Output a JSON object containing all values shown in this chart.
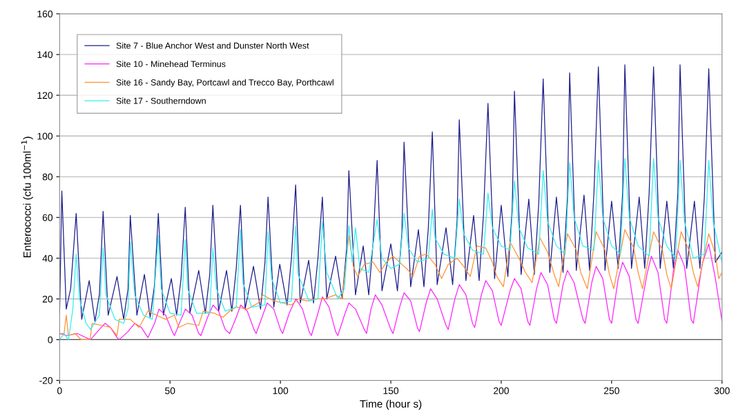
{
  "chart_data": {
    "type": "line",
    "xlabel": "Time (hour s)",
    "ylabel": "Enterococci (cfu 100ml$^{−1}$)",
    "xlim": [
      0,
      300
    ],
    "xticks": [
      0,
      50,
      100,
      150,
      200,
      250,
      300
    ],
    "ylim": [
      -20,
      160
    ],
    "yticks": [
      -20,
      0,
      20,
      40,
      60,
      80,
      100,
      120,
      140,
      160
    ],
    "grid": "y",
    "legend": "top left",
    "line_style": "solid",
    "series": [
      {
        "name": "Site 7 - Blue Anchor West and Dunster North West",
        "color": "#1c1c8c",
        "x": [
          0,
          1,
          3,
          5,
          7.5,
          10,
          13.4,
          16,
          18,
          19.7,
          22,
          26,
          29,
          31,
          32,
          35,
          38.4,
          41,
          43,
          44.7,
          47,
          50.6,
          53,
          55,
          56.9,
          59,
          63,
          66,
          68,
          69.4,
          72,
          75.6,
          78,
          80,
          81.9,
          84,
          87.8,
          91,
          93,
          94.4,
          97,
          99.7,
          103,
          105,
          106.9,
          109,
          112.8,
          115,
          117,
          119,
          121,
          125,
          128,
          130,
          131,
          134,
          137.5,
          140,
          142,
          143.8,
          146,
          150,
          153,
          155,
          156,
          159,
          162.5,
          165,
          167,
          168.8,
          171,
          175,
          178,
          180,
          181,
          184,
          187.5,
          190,
          192,
          194,
          197,
          200,
          203,
          205,
          206,
          209,
          212.5,
          215,
          217,
          219,
          222,
          225,
          228,
          230,
          231,
          234,
          237.5,
          240,
          242,
          244,
          247,
          250,
          253,
          255,
          256,
          259,
          262.5,
          265,
          267,
          269,
          272,
          275,
          278,
          280,
          281,
          284,
          287.5,
          290,
          292,
          294,
          297,
          300
        ],
        "values": [
          13,
          73,
          15,
          25,
          62,
          10,
          29,
          9,
          22,
          63,
          12,
          31,
          10,
          25,
          61,
          12,
          32,
          11,
          27,
          62,
          12,
          30,
          12,
          30,
          65,
          13,
          34,
          13,
          32,
          66,
          14,
          34,
          14,
          35,
          66,
          15,
          36,
          15,
          38,
          70,
          16,
          37,
          17,
          40,
          76,
          18,
          39,
          18,
          40,
          70,
          20,
          41,
          20,
          45,
          83,
          22,
          46,
          22,
          48,
          88,
          24,
          47,
          24,
          52,
          97,
          26,
          54,
          26,
          55,
          102,
          27,
          55,
          27,
          58,
          108,
          29,
          61,
          29,
          62,
          116,
          30,
          66,
          31,
          65,
          122,
          32,
          69,
          32,
          67,
          128,
          33,
          70,
          33,
          70,
          131,
          34,
          71,
          34,
          72,
          134,
          34,
          68,
          35,
          72,
          135,
          35,
          70,
          35,
          72,
          134,
          35,
          68,
          35,
          72,
          135,
          35,
          68,
          35,
          70,
          133,
          38,
          43
        ]
      },
      {
        "name": "Site 10 - Minehead Terminus",
        "color": "#ff22ff",
        "x": [
          0,
          3,
          8,
          12,
          14,
          18,
          20.6,
          23,
          26,
          27,
          31,
          34,
          37,
          40,
          43,
          45,
          48,
          51,
          52,
          55,
          57,
          60,
          63,
          64,
          67,
          69.5,
          72,
          75,
          77,
          80,
          82,
          85,
          88,
          89,
          92,
          94,
          97,
          100,
          101,
          104,
          107,
          110,
          113,
          114,
          117,
          119,
          122,
          125,
          126,
          129,
          131,
          134,
          138,
          139,
          141,
          143,
          146,
          150,
          151,
          154,
          156,
          159,
          162,
          163,
          166,
          168,
          171,
          175,
          176,
          179,
          181,
          184,
          187,
          188,
          191,
          193,
          196,
          199,
          200,
          204,
          206,
          209,
          212,
          213,
          216,
          218,
          221,
          224,
          225,
          228,
          230,
          233,
          237,
          238,
          241,
          243,
          246,
          249,
          250,
          253,
          255,
          258,
          261,
          262,
          266,
          268,
          271,
          274,
          275,
          278,
          280,
          283,
          286,
          287,
          291,
          294,
          297,
          300
        ],
        "values": [
          3,
          2,
          3,
          1,
          0,
          5,
          8,
          6,
          1,
          0,
          4,
          8,
          6,
          1,
          8,
          15,
          12,
          4,
          2,
          10,
          15,
          12,
          3,
          2,
          11,
          17,
          14,
          5,
          3,
          11,
          17,
          14,
          5,
          3,
          12,
          18,
          15,
          5,
          3,
          13,
          20,
          15,
          4,
          2,
          13,
          21,
          16,
          4,
          2,
          12,
          18,
          15,
          5,
          3,
          15,
          22,
          17,
          5,
          3,
          16,
          23,
          19,
          6,
          4,
          18,
          25,
          20,
          7,
          5,
          20,
          27,
          22,
          8,
          6,
          22,
          29,
          24,
          9,
          7,
          24,
          30,
          25,
          9,
          7,
          25,
          33,
          27,
          10,
          8,
          27,
          34,
          28,
          10,
          8,
          28,
          36,
          30,
          10,
          8,
          30,
          38,
          31,
          10,
          8,
          32,
          41,
          33,
          10,
          8,
          34,
          44,
          36,
          10,
          8,
          37,
          47,
          30,
          9
        ]
      },
      {
        "name": "Site 16 - Sandy Bay, Portcawl and Trecco Bay, Porthcawl",
        "color": "#ff9133",
        "x": [
          0,
          2,
          3,
          4,
          7,
          9.7,
          13.8,
          14.7,
          19,
          23,
          26,
          27,
          32,
          36,
          40,
          44,
          48,
          52,
          54,
          58,
          63,
          65,
          70,
          74,
          77,
          80,
          85,
          90,
          92,
          97,
          101,
          105,
          108,
          112,
          116,
          120,
          125,
          128,
          131,
          133,
          135,
          138,
          142,
          145,
          148,
          151,
          155,
          158,
          160,
          163,
          166,
          170,
          173,
          176,
          180,
          183,
          186,
          189,
          193,
          196,
          198,
          201,
          204,
          208,
          211,
          214,
          217.5,
          221,
          224,
          226,
          230,
          234,
          236,
          239,
          243,
          247,
          249,
          251,
          256,
          260,
          262,
          264,
          269,
          273,
          275,
          277,
          281.5,
          285,
          287,
          289,
          294,
          297,
          298.5,
          300
        ],
        "values": [
          3,
          3,
          12,
          2,
          3,
          0,
          0,
          8,
          7,
          6,
          2,
          10,
          10,
          6,
          14,
          12,
          10,
          12,
          6,
          8,
          7,
          14,
          13,
          11,
          14,
          16,
          15,
          18,
          22,
          19,
          18,
          17,
          20,
          19,
          20,
          20,
          22,
          20,
          51,
          36,
          31,
          37,
          38,
          33,
          38,
          41,
          37,
          34,
          31,
          41,
          42,
          37,
          30,
          37,
          40,
          36,
          31,
          46,
          45,
          38,
          31,
          26,
          48,
          40,
          33,
          28,
          50,
          43,
          32,
          26,
          52,
          44,
          33,
          25,
          53,
          44,
          32,
          25,
          54,
          45,
          33,
          25,
          53,
          44,
          32,
          25,
          53,
          44,
          33,
          26,
          52,
          42,
          30,
          33
        ]
      },
      {
        "name": "Site 17 - Southerndown",
        "color": "#33eeee",
        "x": [
          0,
          2,
          4,
          6,
          7.5,
          9,
          12,
          14,
          18,
          19.7,
          21,
          25,
          29,
          31,
          32,
          34,
          38,
          42,
          44.7,
          46,
          50,
          55,
          56.9,
          58,
          62,
          68,
          69.4,
          71,
          75,
          80,
          81.9,
          83,
          87,
          93,
          94.4,
          96,
          100,
          105,
          106.9,
          108,
          113,
          117,
          119,
          121,
          126,
          129,
          131,
          132.5,
          134,
          136,
          140,
          143.8,
          146,
          150,
          154,
          156,
          158,
          162,
          167,
          168.8,
          170,
          174,
          179,
          181,
          183,
          187,
          192,
          194,
          196,
          200,
          204,
          206,
          208,
          212,
          217,
          219,
          221,
          225,
          229,
          231,
          233,
          237,
          242,
          244,
          246,
          250,
          254,
          256,
          258,
          262,
          267,
          269,
          271,
          275,
          279,
          281,
          283,
          287,
          292,
          294,
          296,
          300
        ],
        "values": [
          0,
          3,
          0,
          15,
          42,
          20,
          8,
          5,
          12,
          45,
          22,
          10,
          8,
          15,
          48,
          22,
          12,
          10,
          51,
          25,
          13,
          12,
          49,
          25,
          13,
          13,
          45,
          25,
          14,
          16,
          54,
          28,
          16,
          17,
          53,
          30,
          18,
          19,
          56,
          32,
          19,
          20,
          58,
          33,
          20,
          25,
          56,
          38,
          55,
          35,
          33,
          59,
          40,
          35,
          37,
          62,
          45,
          38,
          40,
          64,
          50,
          42,
          40,
          69,
          52,
          44,
          42,
          72,
          55,
          46,
          44,
          78,
          55,
          45,
          42,
          83,
          58,
          46,
          42,
          87,
          60,
          46,
          44,
          88,
          60,
          46,
          42,
          89,
          60,
          46,
          41,
          89,
          60,
          46,
          40,
          88,
          58,
          40,
          42,
          88,
          58,
          38
        ]
      }
    ]
  }
}
